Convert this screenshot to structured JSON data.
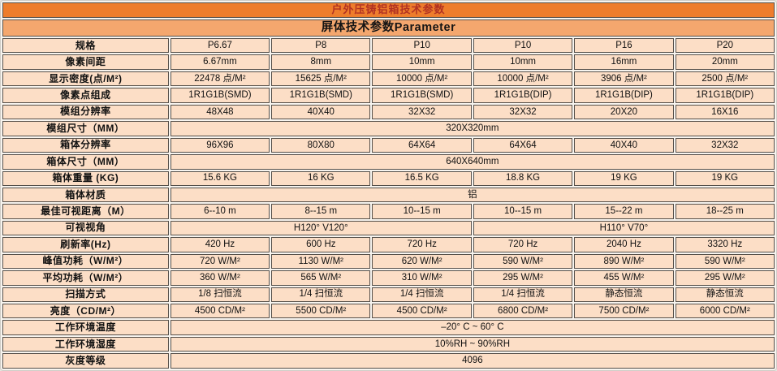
{
  "header": {
    "title": "户外压铸铝箱技术参数",
    "subtitle": "屏体技术参数Parameter"
  },
  "colors": {
    "accent_orange": "#ee7d2c",
    "subtitle_orange": "#f4a76e",
    "cell_peach": "#fcdec6",
    "title_red": "#b23222",
    "border_dark": "#56504a",
    "gap_white": "#f7f4ef"
  },
  "table": {
    "column_count": 7,
    "models": [
      "P6.67",
      "P8",
      "P10",
      "P10",
      "P16",
      "P20"
    ],
    "rows": [
      {
        "label": "规格",
        "cells": [
          "P6.67",
          "P8",
          "P10",
          "P10",
          "P16",
          "P20"
        ]
      },
      {
        "label": "像素间距",
        "cells": [
          "6.67mm",
          "8mm",
          "10mm",
          "10mm",
          "16mm",
          "20mm"
        ]
      },
      {
        "label": "显示密度(点/M²)",
        "cells": [
          "22478 点/M²",
          "15625 点/M²",
          "10000 点/M²",
          "10000 点/M²",
          "3906 点/M²",
          "2500 点/M²"
        ]
      },
      {
        "label": "像素点组成",
        "cells": [
          "1R1G1B(SMD)",
          "1R1G1B(SMD)",
          "1R1G1B(SMD)",
          "1R1G1B(DIP)",
          "1R1G1B(DIP)",
          "1R1G1B(DIP)"
        ]
      },
      {
        "label": "模组分辨率",
        "cells": [
          "48X48",
          "40X40",
          "32X32",
          "32X32",
          "20X20",
          "16X16"
        ]
      },
      {
        "label": "模组尺寸（MM）",
        "cells": [
          {
            "text": "320X320mm",
            "span": 6
          }
        ]
      },
      {
        "label": "箱体分辨率",
        "cells": [
          "96X96",
          "80X80",
          "64X64",
          "64X64",
          "40X40",
          "32X32"
        ]
      },
      {
        "label": "箱体尺寸（MM）",
        "cells": [
          {
            "text": "640X640mm",
            "span": 6
          }
        ]
      },
      {
        "label": "箱体重量 (KG)",
        "cells": [
          "15.6 KG",
          "16 KG",
          "16.5 KG",
          "18.8 KG",
          "19 KG",
          "19 KG"
        ]
      },
      {
        "label": "箱体材质",
        "cells": [
          {
            "text": "铝",
            "span": 6
          }
        ]
      },
      {
        "label": "最佳可视距离（M）",
        "cells": [
          "6--10 m",
          "8--15 m",
          "10--15 m",
          "10--15 m",
          "15--22 m",
          "18--25 m"
        ]
      },
      {
        "label": "可视视角",
        "cells": [
          {
            "text": "H120° V120°",
            "span": 3
          },
          {
            "text": "H110° V70°",
            "span": 3
          }
        ]
      },
      {
        "label": "刷新率(Hz)",
        "cells": [
          "420 Hz",
          "600 Hz",
          "720 Hz",
          "720 Hz",
          "2040 Hz",
          "3320 Hz"
        ]
      },
      {
        "label": "峰值功耗（W/M²）",
        "cells": [
          "720 W/M²",
          "1130 W/M²",
          "620 W/M²",
          "590 W/M²",
          "890 W/M²",
          "590 W/M²"
        ]
      },
      {
        "label": "平均功耗（W/M²）",
        "cells": [
          "360 W/M²",
          "565 W/M²",
          "310 W/M²",
          "295 W/M²",
          "455 W/M²",
          "295 W/M²"
        ]
      },
      {
        "label": "扫描方式",
        "cells": [
          "1/8 扫恒流",
          "1/4 扫恒流",
          "1/4 扫恒流",
          "1/4 扫恒流",
          "静态恒流",
          "静态恒流"
        ]
      },
      {
        "label": "亮度（CD/M²）",
        "cells": [
          "4500 CD/M²",
          "5500 CD/M²",
          "4500 CD/M²",
          "6800 CD/M²",
          "7500 CD/M²",
          "6000 CD/M²"
        ]
      },
      {
        "label": "工作环境温度",
        "cells": [
          {
            "text": "–20° C ~ 60° C",
            "span": 6
          }
        ]
      },
      {
        "label": "工作环境湿度",
        "cells": [
          {
            "text": "10%RH ~ 90%RH",
            "span": 6
          }
        ]
      },
      {
        "label": "灰度等级",
        "cells": [
          {
            "text": "4096",
            "span": 6
          }
        ]
      }
    ]
  }
}
